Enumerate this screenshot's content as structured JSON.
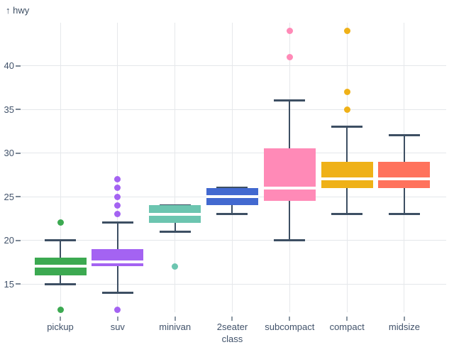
{
  "header": {
    "y_axis_label": "↑ hwy"
  },
  "chart_data": {
    "type": "boxplot",
    "title": "",
    "xlabel": "class",
    "ylabel": "hwy",
    "y_ticks": [
      15,
      20,
      25,
      30,
      35,
      40
    ],
    "ylim": [
      11.7,
      44.9
    ],
    "grid": true,
    "categories": [
      "pickup",
      "suv",
      "minivan",
      "2seater",
      "subcompact",
      "compact",
      "midsize"
    ],
    "series": [
      {
        "class": "pickup",
        "color": "#3ca951",
        "low": 15,
        "q1": 16,
        "median": 17,
        "q3": 18,
        "high": 20,
        "outliers": [
          12,
          22
        ]
      },
      {
        "class": "suv",
        "color": "#a463f2",
        "low": 14,
        "q1": 17,
        "median": 17.5,
        "q3": 19,
        "high": 22,
        "outliers": [
          12,
          23,
          24,
          25,
          26,
          27
        ]
      },
      {
        "class": "minivan",
        "color": "#6cc5b0",
        "low": 21,
        "q1": 22,
        "median": 23,
        "q3": 24,
        "high": 24,
        "outliers": [
          17
        ]
      },
      {
        "class": "2seater",
        "color": "#4269d0",
        "low": 23,
        "q1": 24,
        "median": 25,
        "q3": 26,
        "high": 26,
        "outliers": []
      },
      {
        "class": "subcompact",
        "color": "#ff8ab7",
        "low": 20,
        "q1": 24.5,
        "median": 26,
        "q3": 30.5,
        "high": 36,
        "outliers": [
          41,
          44
        ]
      },
      {
        "class": "compact",
        "color": "#efb118",
        "low": 23,
        "q1": 26,
        "median": 27,
        "q3": 29,
        "high": 33,
        "outliers": [
          35,
          37,
          44
        ]
      },
      {
        "class": "midsize",
        "color": "#ff725c",
        "low": 23,
        "q1": 26,
        "median": 27,
        "q3": 29,
        "high": 32,
        "outliers": []
      }
    ],
    "colors": {
      "axis_text": "#41526a",
      "y_gridline": "#e4e7ea",
      "x_gridline": "#e6e8eb",
      "whisker_stroke": "#3d4f63",
      "median_stripe": "#ffffff",
      "background": "#ffffff"
    }
  }
}
